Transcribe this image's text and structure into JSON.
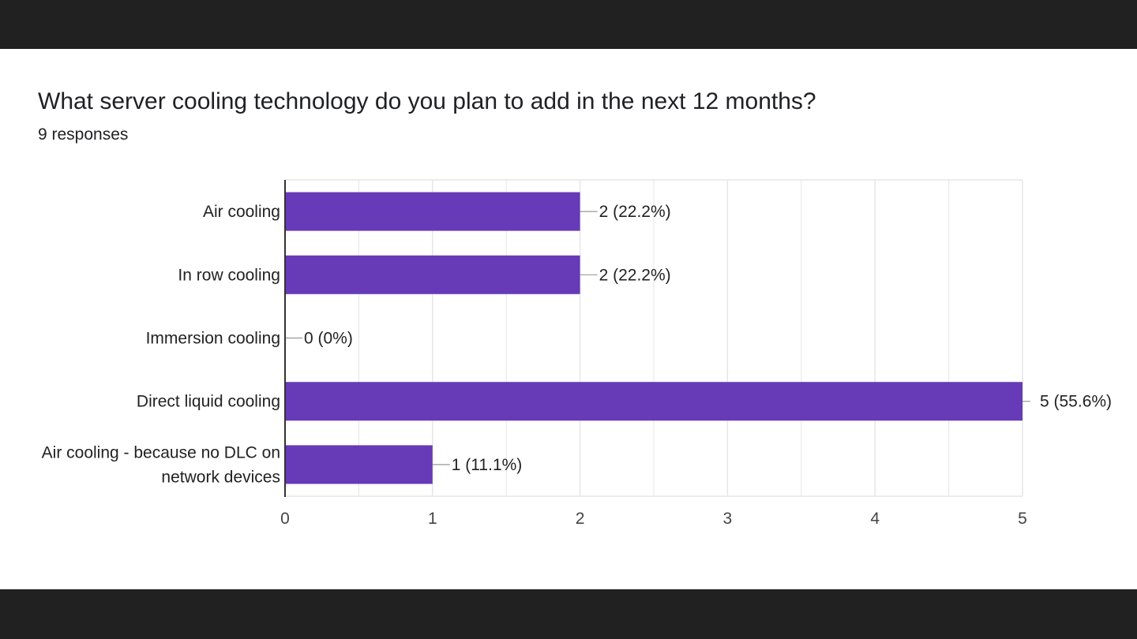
{
  "question": {
    "title": "What server cooling technology do you plan to add in the next 12 months?",
    "responses": "9 responses"
  },
  "colors": {
    "bar": "#673ab7",
    "grid": "#e6e6e6",
    "axis": "#333333",
    "background": "#ffffff",
    "frame": "#212121"
  },
  "chart_data": {
    "type": "bar",
    "orientation": "horizontal",
    "categories": [
      [
        "Air cooling"
      ],
      [
        "In row cooling"
      ],
      [
        "Immersion cooling"
      ],
      [
        "Direct liquid cooling"
      ],
      [
        "Air cooling - because no DLC on",
        "network devices"
      ]
    ],
    "values": [
      2,
      2,
      0,
      5,
      1
    ],
    "value_labels": [
      "2 (22.2%)",
      "2 (22.2%)",
      "0 (0%)",
      "5 (55.6%)",
      "1 (11.1%)"
    ],
    "xticks": [
      "0",
      "1",
      "2",
      "3",
      "4",
      "5"
    ],
    "xlim": [
      0,
      5
    ],
    "grid": true
  }
}
